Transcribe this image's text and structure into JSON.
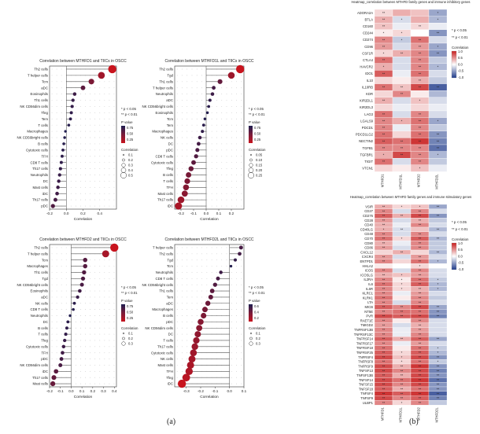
{
  "panel_labels": {
    "a": "(a)",
    "b": "(b)"
  },
  "chart_data": [
    {
      "id": "lollipop-1",
      "type": "scatter",
      "title": "Correlation between MTHFD1 and TIICs in OSCC",
      "xlabel": "Correlation",
      "xlim": [
        -0.2,
        0.6
      ],
      "xticks": [
        -0.2,
        0.0,
        0.2,
        0.4
      ],
      "categories": [
        "Th2 cells",
        "T helper cells",
        "Tcm",
        "aDC",
        "Eosinophils",
        "Th1 cells",
        "NK CD56dim cells",
        "Tfeg",
        "Tem",
        "T cells",
        "Macrophages",
        "NK CD56bright cells",
        "B cells",
        "Cytotoxic cells",
        "TFH",
        "CD8 T cells",
        "Th17 cells",
        "Neutrophils",
        "DC",
        "Mast cells",
        "iDC",
        "Th17 cells",
        "pDC"
      ],
      "values": [
        0.55,
        0.42,
        0.3,
        0.2,
        0.1,
        0.08,
        0.07,
        0.06,
        0.05,
        0.03,
        -0.01,
        -0.02,
        -0.03,
        -0.04,
        -0.05,
        -0.06,
        -0.07,
        -0.08,
        -0.09,
        -0.1,
        -0.11,
        -0.13,
        -0.16
      ],
      "legend_sig": [
        "* p < 0.05",
        "** p < 0.01"
      ],
      "legend_p_title": "P value",
      "legend_p_ticks": [
        "0.75",
        "0.50",
        "0.25"
      ],
      "legend_size_title": "Correlation",
      "legend_size_ticks": [
        "0.1",
        "0.2",
        "0.3",
        "0.4",
        "0.5"
      ]
    },
    {
      "id": "lollipop-2",
      "type": "scatter",
      "title": "Correlation between MTHFD1L and TIICs in OSCC",
      "xlabel": "Correlation",
      "xlim": [
        -0.25,
        0.3
      ],
      "xticks": [
        -0.2,
        -0.1,
        0.0,
        0.1,
        0.2
      ],
      "categories": [
        "Th2 cells",
        "Tgd",
        "Th1 cells",
        "T helper cells",
        "Neutrophils",
        "aDC",
        "NK CD56bright cells",
        "Eosinophils",
        "Tcm",
        "Tem",
        "Macrophages",
        "NK cells",
        "DC",
        "pDC",
        "CD8 T cells",
        "Cytotoxic cells",
        "Tfeg",
        "B cells",
        "T cells",
        "TFH",
        "Mast cells",
        "Th17 cells",
        "iDC"
      ],
      "values": [
        0.27,
        0.2,
        0.11,
        0.06,
        0.05,
        0.03,
        0.02,
        0.01,
        -0.01,
        -0.02,
        -0.03,
        -0.05,
        -0.06,
        -0.07,
        -0.08,
        -0.1,
        -0.12,
        -0.14,
        -0.15,
        -0.16,
        -0.17,
        -0.2,
        -0.22
      ],
      "legend_sig": [
        "* p < 0.05",
        "** p < 0.01"
      ],
      "legend_p_title": "P value",
      "legend_p_ticks": [
        "0.75",
        "0.50",
        "0.25"
      ],
      "legend_size_title": "Correlation",
      "legend_size_ticks": [
        "0.05",
        "0.10",
        "0.15",
        "0.20",
        "0.25"
      ]
    },
    {
      "id": "lollipop-3",
      "type": "scatter",
      "title": "Correlation between MTHFD2 and TIICs in OSCC",
      "xlabel": "Correlation",
      "xlim": [
        -0.2,
        0.42
      ],
      "xticks": [
        -0.2,
        -0.1,
        0.0,
        0.1,
        0.2,
        0.3,
        0.4
      ],
      "categories": [
        "Th2 cells",
        "T helper cells",
        "Tcm",
        "Macrophages",
        "Th1 cells",
        "Tgd",
        "NK CD56bright cells",
        "Eosinophils",
        "aDC",
        "NK cells",
        "CD8 T cells",
        "Neutrophils",
        "DC",
        "B cells",
        "T cells",
        "Tfeg",
        "Cytotoxic cells",
        "TFH",
        "pDC",
        "NK CD56dim cells",
        "iDC",
        "Th17 cells",
        "Mast cells"
      ],
      "values": [
        0.4,
        0.32,
        0.13,
        0.13,
        0.12,
        0.11,
        0.1,
        0.08,
        0.06,
        0.03,
        0.02,
        -0.01,
        -0.03,
        -0.04,
        -0.05,
        -0.06,
        -0.07,
        -0.08,
        -0.09,
        -0.1,
        -0.14,
        -0.16,
        -0.17
      ],
      "legend_sig": [
        "* p < 0.05",
        "** p < 0.01"
      ],
      "legend_p_title": "P value",
      "legend_p_ticks": [
        "0.75",
        "0.50",
        "0.25"
      ],
      "legend_size_title": "Correlation",
      "legend_size_ticks": [
        "0.1",
        "0.2",
        "0.3"
      ]
    },
    {
      "id": "lollipop-4",
      "type": "scatter",
      "title": "Correlation between MTHFD2L and TIICs in OSCC",
      "xlabel": "Correlation",
      "xlim": [
        -0.38,
        0.1
      ],
      "xticks": [
        -0.3,
        -0.2,
        -0.1,
        0.0,
        0.1
      ],
      "categories": [
        "T helper cells",
        "Th2 cells",
        "Tgd",
        "Tcm",
        "Neutrophils",
        "CD8 T cells",
        "NK CD56bright cells",
        "Th1 cells",
        "Tem",
        "aDC",
        "Macrophages",
        "B cells",
        "pDC",
        "NK CD56dim cells",
        "DC",
        "T cells",
        "Th17 cells",
        "Cytotoxic cells",
        "NK cells",
        "Mast cells",
        "TFH",
        "Tfeg",
        "iDC"
      ],
      "values": [
        0.08,
        0.07,
        0.04,
        0.01,
        -0.06,
        -0.08,
        -0.1,
        -0.12,
        -0.13,
        -0.15,
        -0.17,
        -0.18,
        -0.2,
        -0.21,
        -0.22,
        -0.23,
        -0.24,
        -0.25,
        -0.26,
        -0.27,
        -0.28,
        -0.3,
        -0.33
      ],
      "legend_sig": [
        "* p < 0.05",
        "** p < 0.01"
      ],
      "legend_p_title": "P value",
      "legend_p_ticks": [
        "0.6",
        "0.4",
        "0.2"
      ],
      "legend_size_title": "Correlation",
      "legend_size_ticks": [
        "0.1",
        "0.2",
        "0.3"
      ]
    },
    {
      "id": "heatmap-inhibitory",
      "type": "heatmap",
      "title": "Heatmap_correlation between MTHFD family genes and immune inhibitory genes",
      "columns": [
        "MTHFD1",
        "MTHFD1L",
        "MTHFD2",
        "MTHFD2L"
      ],
      "rows": [
        "ADORA2A",
        "BTLA",
        "CD160",
        "CD244",
        "CD274",
        "CD96",
        "CSF1R",
        "CTLA4",
        "HAVCR2",
        "IDO1",
        "IL10",
        "IL10RB",
        "KDR",
        "KIR2DL1",
        "KIR2DL3",
        "LAG3",
        "LGALS9",
        "PDCD1",
        "PDCD1LG2",
        "NECTIN2",
        "TGFB1",
        "TGFBR1",
        "TIGIT",
        "VTCN1"
      ],
      "values": [
        [
          0.1,
          0.2,
          0.15,
          -0.25
        ],
        [
          0.2,
          -0.1,
          0.2,
          -0.2
        ],
        [
          0.15,
          -0.05,
          0.1,
          -0.05
        ],
        [
          0.05,
          0.1,
          0.0,
          -0.3
        ],
        [
          0.3,
          -0.15,
          0.35,
          -0.1
        ],
        [
          0.25,
          -0.1,
          0.25,
          -0.25
        ],
        [
          0.1,
          0.2,
          0.3,
          -0.3
        ],
        [
          0.35,
          -0.1,
          0.3,
          -0.15
        ],
        [
          0.2,
          -0.1,
          0.3,
          -0.2
        ],
        [
          0.4,
          -0.05,
          0.35,
          -0.1
        ],
        [
          0.1,
          0.05,
          0.2,
          -0.15
        ],
        [
          0.35,
          0.15,
          0.45,
          -0.45
        ],
        [
          0.1,
          0.3,
          0.05,
          -0.2
        ],
        [
          0.2,
          -0.1,
          0.15,
          -0.1
        ],
        [
          0.1,
          -0.05,
          0.1,
          -0.05
        ],
        [
          0.35,
          -0.1,
          0.3,
          -0.1
        ],
        [
          0.3,
          0.2,
          0.35,
          -0.25
        ],
        [
          0.3,
          -0.05,
          0.3,
          -0.15
        ],
        [
          0.35,
          0.1,
          0.35,
          -0.3
        ],
        [
          0.4,
          0.35,
          0.5,
          -0.35
        ],
        [
          0.3,
          0.3,
          0.3,
          -0.4
        ],
        [
          0.2,
          0.45,
          0.3,
          -0.2
        ],
        [
          0.35,
          -0.1,
          0.3,
          -0.15
        ],
        [
          0.1,
          0.05,
          0.15,
          -0.05
        ]
      ],
      "stars": [
        [
          "**",
          "",
          "",
          "*"
        ],
        [
          "**",
          "*",
          "",
          "*"
        ],
        [
          "**",
          "",
          "**",
          ""
        ],
        [
          "*",
          "*",
          "",
          "**"
        ],
        [
          "**",
          "*",
          "**",
          ""
        ],
        [
          "**",
          "",
          "**",
          "*"
        ],
        [
          "*",
          "**",
          "**",
          "**"
        ],
        [
          "**",
          "",
          "**",
          ""
        ],
        [
          "*",
          "",
          "**",
          "*"
        ],
        [
          "**",
          "",
          "**",
          ""
        ],
        [
          "",
          "",
          "**",
          ""
        ],
        [
          "**",
          "**",
          "**",
          "**"
        ],
        [
          "",
          "**",
          "",
          ""
        ],
        [
          "**",
          "",
          "*",
          ""
        ],
        [
          "",
          "",
          "",
          ""
        ],
        [
          "**",
          "",
          "**",
          ""
        ],
        [
          "**",
          "*",
          "**",
          "*"
        ],
        [
          "**",
          "",
          "**",
          ""
        ],
        [
          "**",
          "",
          "**",
          "**"
        ],
        [
          "**",
          "**",
          "**",
          "**"
        ],
        [
          "**",
          "**",
          "**",
          "**"
        ],
        [
          "*",
          "**",
          "**",
          "*"
        ],
        [
          "**",
          "",
          "**",
          ""
        ],
        [
          "",
          "",
          "*",
          ""
        ]
      ],
      "legend_sig": [
        "* p < 0.05",
        "** p < 0.01"
      ],
      "legend_title": "Correlation",
      "legend_ticks": [
        "1.0",
        "0.5",
        "0.0",
        "-0.5",
        "-1.0"
      ]
    },
    {
      "id": "heatmap-stimulatory",
      "type": "heatmap",
      "title": "Heatmap_correlation between MTHFD family genes and immune stimulatory genes",
      "columns": [
        "MTHFD1",
        "MTHFD1L",
        "MTHFD2",
        "MTHFD2L"
      ],
      "rows": [
        "VSIR",
        "CD27",
        "CD276",
        "CD28",
        "CD40",
        "CD40LG",
        "CD48",
        "CD70",
        "CD80",
        "CD86",
        "CXCL12",
        "CXCR4",
        "ENTPD1",
        "HHLA2",
        "ICOS",
        "ICOSLG",
        "IL2RA",
        "IL6",
        "IL6R",
        "KLRC1",
        "KLRK1",
        "LTA",
        "MICB",
        "NT5E",
        "PVR",
        "RAET1E",
        "TMIGD2",
        "TNFRSF13B",
        "TNFRSF13C",
        "TNFRSF14",
        "TNFRSF17",
        "TNFRSF18",
        "TNFRSF25",
        "TNFRSF4",
        "TNFRSF8",
        "TNFRSF9",
        "TNFSF13",
        "TNFSF13B",
        "TNFSF14",
        "TNFSF15",
        "TNFSF18",
        "TNFSF4",
        "TNFSF9",
        "ULBP1"
      ],
      "values": [
        [
          0.2,
          0.1,
          0.15,
          -0.25
        ],
        [
          0.3,
          -0.1,
          0.3,
          -0.1
        ],
        [
          0.4,
          0.2,
          0.45,
          -0.3
        ],
        [
          0.25,
          -0.1,
          0.2,
          -0.15
        ],
        [
          0.2,
          -0.05,
          0.3,
          -0.1
        ],
        [
          0.2,
          -0.1,
          0.15,
          -0.2
        ],
        [
          0.3,
          -0.1,
          0.3,
          -0.1
        ],
        [
          0.35,
          0.1,
          0.4,
          -0.2
        ],
        [
          0.2,
          -0.05,
          0.3,
          -0.15
        ],
        [
          0.25,
          -0.1,
          0.3,
          -0.15
        ],
        [
          0.1,
          0.2,
          0.1,
          -0.2
        ],
        [
          0.25,
          -0.1,
          0.25,
          -0.1
        ],
        [
          0.3,
          0.1,
          0.35,
          -0.2
        ],
        [
          0.05,
          0.0,
          0.1,
          0.0
        ],
        [
          0.3,
          -0.1,
          0.3,
          -0.1
        ],
        [
          0.2,
          0.15,
          0.25,
          -0.1
        ],
        [
          0.3,
          0.05,
          0.35,
          -0.15
        ],
        [
          0.35,
          0.1,
          0.4,
          -0.2
        ],
        [
          0.3,
          0.1,
          0.2,
          -0.2
        ],
        [
          0.3,
          -0.05,
          0.25,
          -0.1
        ],
        [
          0.35,
          0.05,
          0.3,
          -0.15
        ],
        [
          0.3,
          -0.1,
          0.3,
          -0.1
        ],
        [
          0.4,
          0.3,
          0.45,
          -0.25
        ],
        [
          0.3,
          0.35,
          0.35,
          -0.3
        ],
        [
          0.45,
          0.4,
          0.45,
          -0.35
        ],
        [
          0.3,
          0.05,
          0.3,
          -0.1
        ],
        [
          0.25,
          -0.1,
          0.2,
          -0.1
        ],
        [
          0.3,
          -0.05,
          0.25,
          -0.1
        ],
        [
          0.3,
          -0.05,
          0.3,
          -0.1
        ],
        [
          0.4,
          0.2,
          0.4,
          -0.25
        ],
        [
          0.3,
          -0.05,
          0.25,
          -0.1
        ],
        [
          0.35,
          0.05,
          0.35,
          -0.15
        ],
        [
          0.4,
          0.1,
          0.4,
          -0.2
        ],
        [
          0.45,
          0.15,
          0.45,
          -0.3
        ],
        [
          0.35,
          0.1,
          0.35,
          -0.15
        ],
        [
          0.45,
          0.2,
          0.5,
          -0.3
        ],
        [
          0.45,
          0.3,
          0.45,
          -0.35
        ],
        [
          0.4,
          0.2,
          0.45,
          -0.3
        ],
        [
          0.45,
          0.35,
          0.5,
          -0.4
        ],
        [
          0.45,
          0.3,
          0.45,
          -0.3
        ],
        [
          0.4,
          0.2,
          0.35,
          -0.3
        ],
        [
          0.5,
          0.4,
          0.5,
          -0.45
        ],
        [
          0.45,
          0.3,
          0.4,
          -0.35
        ],
        [
          0.3,
          0.1,
          0.3,
          -0.15
        ]
      ],
      "stars": [
        [
          "**",
          "*",
          "*",
          "**"
        ],
        [
          "**",
          "",
          "**",
          ""
        ],
        [
          "**",
          "**",
          "**",
          "**"
        ],
        [
          "**",
          "",
          "**",
          ""
        ],
        [
          "**",
          "",
          "**",
          ""
        ],
        [
          "*",
          "**",
          "",
          "**"
        ],
        [
          "**",
          "",
          "**",
          ""
        ],
        [
          "**",
          "*",
          "**",
          "**"
        ],
        [
          "**",
          "",
          "**",
          ""
        ],
        [
          "**",
          "",
          "**",
          ""
        ],
        [
          "",
          "**",
          "",
          "**"
        ],
        [
          "**",
          "",
          "**",
          ""
        ],
        [
          "**",
          "",
          "**",
          "*"
        ],
        [
          "",
          "",
          "*",
          ""
        ],
        [
          "**",
          "",
          "**",
          ""
        ],
        [
          "**",
          "*",
          "**",
          ""
        ],
        [
          "**",
          "*",
          "**",
          "*"
        ],
        [
          "**",
          "*",
          "**",
          "*"
        ],
        [
          "**",
          "*",
          "**",
          "*"
        ],
        [
          "**",
          "",
          "**",
          ""
        ],
        [
          "**",
          "",
          "**",
          ""
        ],
        [
          "**",
          "",
          "**",
          ""
        ],
        [
          "**",
          "**",
          "**",
          "**"
        ],
        [
          "**",
          "**",
          "**",
          "**"
        ],
        [
          "**",
          "**",
          "**",
          "**"
        ],
        [
          "**",
          "",
          "**",
          ""
        ],
        [
          "**",
          "",
          "**",
          ""
        ],
        [
          "**",
          "",
          "**",
          ""
        ],
        [
          "**",
          "",
          "**",
          ""
        ],
        [
          "**",
          "**",
          "**",
          "**"
        ],
        [
          "**",
          "",
          "**",
          ""
        ],
        [
          "**",
          "",
          "**",
          "*"
        ],
        [
          "**",
          "*",
          "**",
          "*"
        ],
        [
          "**",
          "*",
          "**",
          "**"
        ],
        [
          "**",
          "*",
          "**",
          "*"
        ],
        [
          "**",
          "**",
          "**",
          "**"
        ],
        [
          "**",
          "**",
          "**",
          "**"
        ],
        [
          "**",
          "**",
          "**",
          "**"
        ],
        [
          "**",
          "**",
          "**",
          "**"
        ],
        [
          "**",
          "**",
          "**",
          "**"
        ],
        [
          "**",
          "**",
          "**",
          "**"
        ],
        [
          "**",
          "**",
          "**",
          "**"
        ],
        [
          "**",
          "**",
          "**",
          "**"
        ],
        [
          "**",
          "*",
          "**",
          ""
        ]
      ],
      "legend_sig": [
        "* p < 0.05",
        "** p < 0.01"
      ],
      "legend_title": "Correlation",
      "legend_ticks": [
        "1.0",
        "0.5",
        "0.0",
        "-0.5",
        "-1.0"
      ]
    }
  ]
}
